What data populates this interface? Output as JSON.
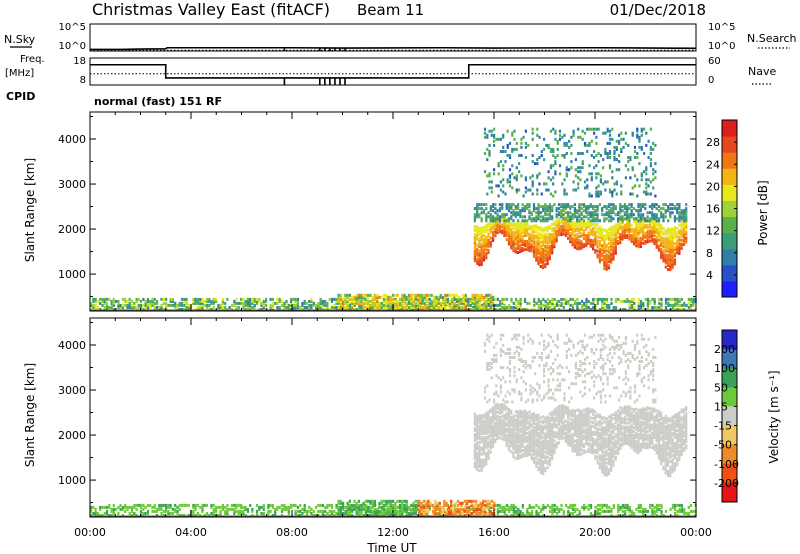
{
  "header": {
    "title": "Christmas Valley East (fitACF)",
    "beam": "Beam 11",
    "date": "01/Dec/2018"
  },
  "time_axis": {
    "xlabel": "Time UT",
    "range_hours": [
      0,
      24
    ],
    "ticks": [
      {
        "h": 0,
        "label": "00:00"
      },
      {
        "h": 4,
        "label": "04:00"
      },
      {
        "h": 8,
        "label": "08:00"
      },
      {
        "h": 12,
        "label": "12:00"
      },
      {
        "h": 16,
        "label": "16:00"
      },
      {
        "h": 20,
        "label": "20:00"
      },
      {
        "h": 24,
        "label": "00:00"
      }
    ]
  },
  "noise_panel": {
    "left_label": "N.Sky",
    "right_label": "N.Search",
    "left_ticks": [
      "10^5",
      "10^0"
    ],
    "right_ticks": [
      "10^5",
      "10^0"
    ]
  },
  "freq_panel": {
    "left_label": "Freq.",
    "left_unit": "[MHz]",
    "right_label": "Nave",
    "left_ticks": [
      "18",
      "8"
    ],
    "right_ticks": [
      "60",
      "0"
    ]
  },
  "cpid": {
    "label": "CPID",
    "mode_text": "normal (fast) 151 RF"
  },
  "chart_data": [
    {
      "type": "line",
      "name": "noise",
      "ylim_log10": [
        0,
        5
      ],
      "sky_log10": [
        [
          0,
          0.3
        ],
        [
          1.2,
          0.3
        ],
        [
          2.0,
          0.35
        ],
        [
          3.0,
          0.4
        ],
        [
          3.05,
          0.6
        ],
        [
          8.0,
          0.6
        ],
        [
          10.0,
          0.55
        ],
        [
          14.0,
          0.6
        ],
        [
          16.0,
          0.55
        ],
        [
          20.0,
          0.6
        ],
        [
          24.0,
          0.5
        ]
      ],
      "search_log10": [
        [
          0,
          0.15
        ],
        [
          24,
          0.15
        ]
      ],
      "dropouts_h": [
        7.7,
        9.1,
        9.3,
        9.5,
        9.7,
        9.9,
        10.1
      ]
    },
    {
      "type": "line",
      "name": "frequency",
      "ylim": [
        8,
        18
      ],
      "freq_mhz": [
        [
          0,
          15.5
        ],
        [
          3.0,
          15.5
        ],
        [
          3.0,
          10.6
        ],
        [
          15.0,
          10.6
        ],
        [
          15.0,
          15.5
        ],
        [
          24,
          15.5
        ]
      ],
      "nave_ylim": [
        0,
        60
      ],
      "nave": [
        [
          0,
          25
        ],
        [
          24,
          25
        ]
      ],
      "dropouts_h": [
        7.7,
        9.1,
        9.3,
        9.5,
        9.7,
        9.9,
        10.1
      ]
    },
    {
      "type": "heatmap",
      "name": "power",
      "ylabel": "Slant Range [km]",
      "ylim": [
        180,
        4600
      ],
      "yticks": [
        1000,
        2000,
        3000,
        4000
      ],
      "colorbar": {
        "label": "Power [dB]",
        "range": [
          0,
          32
        ],
        "ticks": [
          4,
          8,
          12,
          16,
          20,
          24,
          28
        ],
        "colors": [
          "#1e1eff",
          "#2850c8",
          "#2f7fa8",
          "#3d9c7a",
          "#5cb04a",
          "#9ed23a",
          "#e8e61e",
          "#f5b414",
          "#f07814",
          "#e8461e",
          "#dc1e1e"
        ]
      },
      "regions": [
        {
          "h": [
            0,
            24
          ],
          "r": [
            180,
            440
          ],
          "v": [
            6,
            20
          ],
          "d": 0.55
        },
        {
          "h": [
            9.8,
            16
          ],
          "r": [
            180,
            500
          ],
          "v": [
            10,
            24
          ],
          "d": 0.7
        },
        {
          "h": [
            15.2,
            23.6
          ],
          "r": [
            1350,
            2150
          ],
          "v": [
            18,
            30
          ],
          "d": 0.85,
          "band": true
        },
        {
          "h": [
            15.2,
            23.6
          ],
          "r": [
            2150,
            2550
          ],
          "v": [
            6,
            14
          ],
          "d": 0.6
        },
        {
          "h": [
            15.6,
            22.4
          ],
          "r": [
            2700,
            4200
          ],
          "v": [
            5,
            14
          ],
          "d": 0.18
        }
      ]
    },
    {
      "type": "heatmap",
      "name": "velocity",
      "ylabel": "Slant Range [km]",
      "ylim": [
        180,
        4600
      ],
      "yticks": [
        1000,
        2000,
        3000,
        4000
      ],
      "colorbar": {
        "label": "Velocity [m s⁻¹]",
        "ticks": [
          200,
          100,
          50,
          15,
          -15,
          -50,
          -100,
          -200
        ],
        "colors": [
          "#2828c8",
          "#3c78b4",
          "#3ca05a",
          "#6ec83c",
          "#cdcdc8",
          "#f0c864",
          "#f08c28",
          "#f05014",
          "#e61414"
        ]
      },
      "regions": [
        {
          "h": [
            0,
            24
          ],
          "r": [
            180,
            440
          ],
          "v": [
            15,
            60
          ],
          "d": 0.45
        },
        {
          "h": [
            9.8,
            13
          ],
          "r": [
            180,
            500
          ],
          "v": [
            20,
            80
          ],
          "d": 0.7
        },
        {
          "h": [
            13,
            16
          ],
          "r": [
            180,
            520
          ],
          "v": [
            -120,
            -20
          ],
          "d": 0.7
        },
        {
          "h": [
            15.2,
            23.6
          ],
          "r": [
            1350,
            2550
          ],
          "v": [
            -10,
            10
          ],
          "d": 0.85,
          "band": true
        },
        {
          "h": [
            15.6,
            22.4
          ],
          "r": [
            2700,
            4200
          ],
          "v": [
            -10,
            10
          ],
          "d": 0.18
        }
      ]
    }
  ]
}
